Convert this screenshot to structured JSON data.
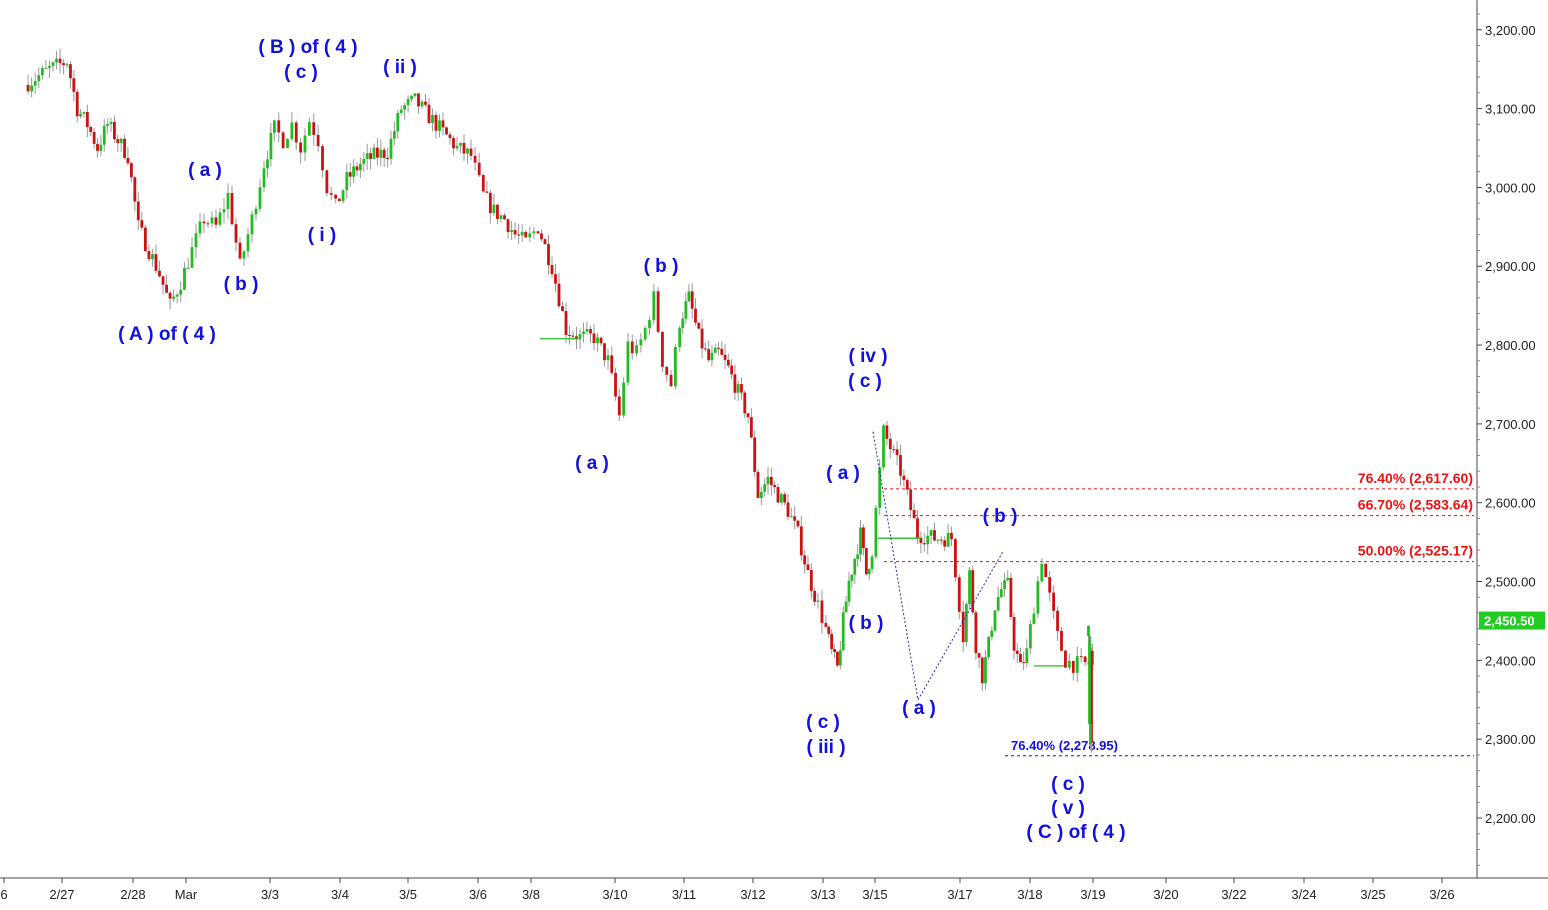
{
  "chart_data": {
    "type": "candlestick",
    "title": "",
    "y_axis": {
      "ticks": [
        2200,
        2300,
        2400,
        2500,
        2600,
        2700,
        2800,
        2900,
        3000,
        3100,
        3200
      ],
      "tick_labels": [
        "2,200.00",
        "2,300.00",
        "2,400.00",
        "2,500.00",
        "2,600.00",
        "2,700.00",
        "2,800.00",
        "2,900.00",
        "3,000.00",
        "3,100.00",
        "3,200.00"
      ],
      "range": [
        2120,
        3240
      ]
    },
    "x_axis": {
      "labels": [
        "6",
        "2/27",
        "2/28",
        "Mar",
        "3/3",
        "3/4",
        "3/5",
        "3/6",
        "3/8",
        "3/10",
        "3/11",
        "3/12",
        "3/13",
        "3/15",
        "3/17",
        "3/18",
        "3/19",
        "3/20",
        "3/22",
        "3/24",
        "3/25",
        "3/26"
      ]
    },
    "grid": false,
    "last_price": {
      "value": 2450.5,
      "label": "2,450.50",
      "color": "#22cc22"
    },
    "colors": {
      "up": "#22bb22",
      "down": "#cc1111",
      "wick": "#999999",
      "wave_labels": "#1010e0",
      "fib_red": "#ee1111",
      "fib_blue": "#1010e0"
    },
    "path_points": [
      [
        "2/26",
        3130
      ],
      [
        "2/26",
        3150
      ],
      [
        "2/27",
        3160
      ],
      [
        "2/27",
        3100
      ],
      [
        "2/27",
        3080
      ],
      [
        "2/27",
        3050
      ],
      [
        "2/27",
        3080
      ],
      [
        "2/27",
        3060
      ],
      [
        "2/27",
        3040
      ],
      [
        "2/28",
        2950
      ],
      [
        "2/28",
        2920
      ],
      [
        "2/28",
        2890
      ],
      [
        "2/28",
        2850
      ],
      [
        "2/28",
        2880
      ],
      [
        "Mar",
        2920
      ],
      [
        "Mar",
        2960
      ],
      [
        "Mar",
        2950
      ],
      [
        "Mar",
        2990
      ],
      [
        "Mar",
        2900
      ],
      [
        "Mar",
        2960
      ],
      [
        "Mar",
        3030
      ],
      [
        "3/3",
        3075
      ],
      [
        "3/3",
        3060
      ],
      [
        "3/3",
        3080
      ],
      [
        "3/3",
        3050
      ],
      [
        "3/3",
        3085
      ],
      [
        "3/3",
        3060
      ],
      [
        "3/3",
        3000
      ],
      [
        "3/3",
        2975
      ],
      [
        "3/4",
        3010
      ],
      [
        "3/4",
        3030
      ],
      [
        "3/4",
        3040
      ],
      [
        "3/4",
        3045
      ],
      [
        "3/4",
        3100
      ],
      [
        "3/5",
        3110
      ],
      [
        "3/5",
        3090
      ],
      [
        "3/5",
        3070
      ],
      [
        "3/5",
        3050
      ],
      [
        "3/5",
        3040
      ],
      [
        "3/6",
        2990
      ],
      [
        "3/6",
        2970
      ],
      [
        "3/6",
        2960
      ],
      [
        "3/6",
        2940
      ],
      [
        "3/6",
        2930
      ],
      [
        "3/8",
        2950
      ],
      [
        "3/8",
        2900
      ],
      [
        "3/8",
        2820
      ],
      [
        "3/8",
        2810
      ],
      [
        "3/8",
        2810
      ],
      [
        "3/8",
        2780
      ],
      [
        "3/10",
        2710
      ],
      [
        "3/10",
        2800
      ],
      [
        "3/10",
        2790
      ],
      [
        "3/10",
        2820
      ],
      [
        "3/10",
        2860
      ],
      [
        "3/10",
        2780
      ],
      [
        "3/10",
        2750
      ],
      [
        "3/10",
        2830
      ],
      [
        "3/11",
        2860
      ],
      [
        "3/11",
        2810
      ],
      [
        "3/11",
        2780
      ],
      [
        "3/11",
        2790
      ],
      [
        "3/11",
        2770
      ],
      [
        "3/11",
        2740
      ],
      [
        "3/11",
        2710
      ],
      [
        "3/12",
        2610
      ],
      [
        "3/12",
        2630
      ],
      [
        "3/12",
        2610
      ],
      [
        "3/12",
        2590
      ],
      [
        "3/12",
        2560
      ],
      [
        "3/12",
        2510
      ],
      [
        "3/12",
        2470
      ],
      [
        "3/13",
        2440
      ],
      [
        "3/13",
        2410
      ],
      [
        "3/13",
        2390
      ],
      [
        "3/13",
        2450
      ],
      [
        "3/13",
        2500
      ],
      [
        "3/13",
        2530
      ],
      [
        "3/13",
        2560
      ],
      [
        "3/13",
        2510
      ],
      [
        "3/13",
        2540
      ],
      [
        "3/15",
        2690
      ],
      [
        "3/15",
        2640
      ],
      [
        "3/15",
        2560
      ],
      [
        "3/15",
        2555
      ],
      [
        "3/15",
        2555
      ],
      [
        "3/17",
        2430
      ],
      [
        "3/17",
        2510
      ],
      [
        "3/17",
        2420
      ],
      [
        "3/17",
        2380
      ],
      [
        "3/17",
        2420
      ],
      [
        "3/17",
        2470
      ],
      [
        "3/17",
        2490
      ],
      [
        "3/17",
        2495
      ],
      [
        "3/17",
        2420
      ],
      [
        "3/17",
        2390
      ],
      [
        "3/17",
        2410
      ],
      [
        "3/18",
        2470
      ],
      [
        "3/18",
        2530
      ],
      [
        "3/18",
        2480
      ],
      [
        "3/18",
        2430
      ],
      [
        "3/18",
        2400
      ],
      [
        "3/18",
        2395
      ],
      [
        "3/18",
        2395
      ],
      [
        "3/18",
        2395
      ],
      [
        "3/19",
        2410
      ],
      [
        "3/19",
        2290
      ],
      [
        "3/19",
        2330
      ],
      [
        "3/19",
        2420
      ],
      [
        "3/19",
        2450
      ]
    ],
    "wave_labels": [
      {
        "text": "( A ) of ( 4 )"
      },
      {
        "text": "( a )"
      },
      {
        "text": "( b )"
      },
      {
        "text": "( B ) of ( 4 )"
      },
      {
        "text": "( c )"
      },
      {
        "text": "( i )"
      },
      {
        "text": "( ii )"
      },
      {
        "text": "( b )"
      },
      {
        "text": "( a )"
      },
      {
        "text": "( iv )"
      },
      {
        "text": "( c )"
      },
      {
        "text": "( a )"
      },
      {
        "text": "( b )"
      },
      {
        "text": "( c )"
      },
      {
        "text": "( iii )"
      },
      {
        "text": "( a )"
      },
      {
        "text": "( b )"
      },
      {
        "text": "( c )"
      },
      {
        "text": "( v )"
      },
      {
        "text": "( C ) of ( 4 )"
      }
    ],
    "fib_levels": [
      {
        "label": "76.40% (2,617.60)",
        "value": 2617.6,
        "color": "#ee1111"
      },
      {
        "label": "66.70% (2,583.64)",
        "value": 2583.64,
        "color": "#ee1111"
      },
      {
        "label": "50.00% (2,525.17)",
        "value": 2525.17,
        "color": "#ee1111"
      },
      {
        "label": "76.40% (2,278.95)",
        "value": 2278.95,
        "color": "#1010e0"
      }
    ]
  }
}
